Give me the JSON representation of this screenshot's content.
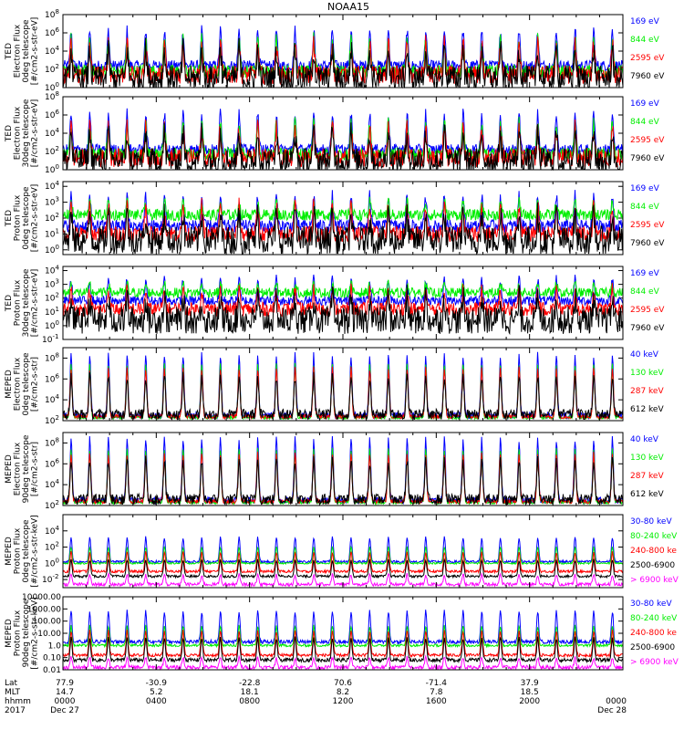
{
  "chart_data": {
    "type": "line",
    "title": "NOAA15",
    "panels": [
      {
        "ylabel_lines": [
          "TED",
          "Electron Flux",
          "0deg telescope",
          "[#/cm2-s-str-eV]"
        ],
        "log_ticks": [
          "10^0",
          "10^2",
          "10^4",
          "10^6",
          "10^8"
        ],
        "ylim_log": [
          0,
          8
        ],
        "series": [
          {
            "name": "7960 eV",
            "color": "#000000",
            "base": 1.0,
            "peak": 4.2,
            "noise": 1.4
          },
          {
            "name": "2595 eV",
            "color": "#ff0000",
            "base": 1.4,
            "peak": 4.8,
            "noise": 1.0
          },
          {
            "name": "844 eV",
            "color": "#00ee00",
            "base": 1.8,
            "peak": 5.4,
            "noise": 0.7
          },
          {
            "name": "169 eV",
            "color": "#0000ff",
            "base": 2.4,
            "peak": 6.3,
            "noise": 0.6
          }
        ]
      },
      {
        "ylabel_lines": [
          "TED",
          "Electron Flux",
          "30deg telescope",
          "[#/cm2-s-str-eV]"
        ],
        "log_ticks": [
          "10^0",
          "10^2",
          "10^4",
          "10^6",
          "10^8"
        ],
        "ylim_log": [
          0,
          8
        ],
        "series": [
          {
            "name": "7960 eV",
            "color": "#000000",
            "base": 1.0,
            "peak": 4.0,
            "noise": 1.4
          },
          {
            "name": "2595 eV",
            "color": "#ff0000",
            "base": 1.3,
            "peak": 4.6,
            "noise": 1.0
          },
          {
            "name": "844 eV",
            "color": "#00ee00",
            "base": 1.7,
            "peak": 5.2,
            "noise": 0.7
          },
          {
            "name": "169 eV",
            "color": "#0000ff",
            "base": 2.2,
            "peak": 6.2,
            "noise": 0.6
          }
        ]
      },
      {
        "ylabel_lines": [
          "TED",
          "Proton Flux",
          "0deg telescope",
          "[#/cm2-s-str-eV]"
        ],
        "log_ticks": [
          "10^0",
          "10^1",
          "10^2",
          "10^3",
          "10^4"
        ],
        "ylim_log": [
          -0.3,
          4.3
        ],
        "series": [
          {
            "name": "7960 eV",
            "color": "#000000",
            "base": 0.6,
            "peak": 2.2,
            "noise": 0.9
          },
          {
            "name": "2595 eV",
            "color": "#ff0000",
            "base": 1.0,
            "peak": 2.8,
            "noise": 0.5
          },
          {
            "name": "844 eV",
            "color": "#00ee00",
            "base": 2.2,
            "peak": 3.0,
            "noise": 0.35
          },
          {
            "name": "169 eV",
            "color": "#0000ff",
            "base": 1.5,
            "peak": 3.4,
            "noise": 0.4
          }
        ]
      },
      {
        "ylabel_lines": [
          "TED",
          "Proton Flux",
          "30deg telescope",
          "[#/cm2-s-str-eV]"
        ],
        "log_ticks": [
          "10^-1",
          "10^0",
          "10^1",
          "10^2",
          "10^3",
          "10^4"
        ],
        "ylim_log": [
          -1,
          4.3
        ],
        "series": [
          {
            "name": "7960 eV",
            "color": "#000000",
            "base": 0.4,
            "peak": 2.0,
            "noise": 1.0
          },
          {
            "name": "2595 eV",
            "color": "#ff0000",
            "base": 1.2,
            "peak": 2.6,
            "noise": 0.5
          },
          {
            "name": "844 eV",
            "color": "#00ee00",
            "base": 2.4,
            "peak": 3.0,
            "noise": 0.35
          },
          {
            "name": "169 eV",
            "color": "#0000ff",
            "base": 1.8,
            "peak": 3.4,
            "noise": 0.35
          }
        ]
      },
      {
        "ylabel_lines": [
          "MEPED",
          "Electron Flux",
          "0deg telescope",
          "[#/cm2-s-str]"
        ],
        "log_ticks": [
          "10^2",
          "10^4",
          "10^6",
          "10^8"
        ],
        "ylim_log": [
          2,
          9
        ],
        "series": [
          {
            "name": "612 keV",
            "color": "#000000",
            "base": 2.6,
            "peak": 6.2,
            "noise": 0.5
          },
          {
            "name": "287 keV",
            "color": "#ff0000",
            "base": 2.4,
            "peak": 7.0,
            "noise": 0.2
          },
          {
            "name": "130 keV",
            "color": "#00ee00",
            "base": 2.3,
            "peak": 7.4,
            "noise": 0.15
          },
          {
            "name": "40 keV",
            "color": "#0000ff",
            "base": 2.5,
            "peak": 8.3,
            "noise": 0.3
          }
        ]
      },
      {
        "ylabel_lines": [
          "MEPED",
          "Electron Flux",
          "90deg telescope",
          "[#/cm2-s-str]"
        ],
        "log_ticks": [
          "10^2",
          "10^4",
          "10^6",
          "10^8"
        ],
        "ylim_log": [
          2,
          9
        ],
        "series": [
          {
            "name": "612 keV",
            "color": "#000000",
            "base": 2.6,
            "peak": 6.3,
            "noise": 0.5
          },
          {
            "name": "287 keV",
            "color": "#ff0000",
            "base": 2.4,
            "peak": 7.0,
            "noise": 0.2
          },
          {
            "name": "130 keV",
            "color": "#00ee00",
            "base": 2.3,
            "peak": 7.4,
            "noise": 0.15
          },
          {
            "name": "40 keV",
            "color": "#0000ff",
            "base": 2.5,
            "peak": 8.4,
            "noise": 0.3
          }
        ]
      },
      {
        "ylabel_lines": [
          "MEPED",
          "Proton Flux",
          "0deg telescope",
          "[#/cm2-s-str-keV]"
        ],
        "log_ticks": [
          "10^-2",
          "10^0",
          "10^2",
          "10^4"
        ],
        "ylim_log": [
          -3,
          6
        ],
        "series": [
          {
            "name": "> 6900 keV",
            "color": "#ff00ff",
            "base": -2.6,
            "peak": -1.4,
            "noise": 0.2
          },
          {
            "name": "2500-6900",
            "color": "#000000",
            "base": -1.6,
            "peak": 0.4,
            "noise": 0.15
          },
          {
            "name": "240-800 ke",
            "color": "#ff0000",
            "base": -1.0,
            "peak": 1.4,
            "noise": 0.15
          },
          {
            "name": "80-240 keV",
            "color": "#00ee00",
            "base": 0.0,
            "peak": 2.0,
            "noise": 0.1
          },
          {
            "name": "30-80 keV",
            "color": "#0000ff",
            "base": 0.2,
            "peak": 3.2,
            "noise": 0.15
          }
        ]
      },
      {
        "ylabel_lines": [
          "MEPED",
          "Proton Flux",
          "90deg telescope",
          "[#/cm2-s-str-keV]"
        ],
        "log_ticks": [
          "0.01",
          "0.10",
          "1.0",
          "10.00",
          "100.00",
          "1000.00",
          "10000.00"
        ],
        "ylim_log": [
          -2,
          4
        ],
        "series": [
          {
            "name": "> 6900 keV",
            "color": "#ff00ff",
            "base": -1.8,
            "peak": -1.0,
            "noise": 0.15
          },
          {
            "name": "2500-6900",
            "color": "#000000",
            "base": -1.2,
            "peak": 0.6,
            "noise": 0.15
          },
          {
            "name": "240-800 ke",
            "color": "#ff0000",
            "base": -0.8,
            "peak": 1.2,
            "noise": 0.12
          },
          {
            "name": "80-240 keV",
            "color": "#00ee00",
            "base": 0.0,
            "peak": 1.6,
            "noise": 0.1
          },
          {
            "name": "30-80 keV",
            "color": "#0000ff",
            "base": 0.3,
            "peak": 2.8,
            "noise": 0.15
          }
        ]
      }
    ],
    "x_axis": {
      "row_labels": [
        "Lat",
        "MLT",
        "hhmm",
        "2017"
      ],
      "columns": [
        {
          "lat": "77.9",
          "mlt": "14.7",
          "hhmm": "0000",
          "date": "Dec 27"
        },
        {
          "lat": "-30.9",
          "mlt": "5.2",
          "hhmm": "0400",
          "date": ""
        },
        {
          "lat": "-22.8",
          "mlt": "18.1",
          "hhmm": "0800",
          "date": ""
        },
        {
          "lat": "70.6",
          "mlt": "8.2",
          "hhmm": "1200",
          "date": ""
        },
        {
          "lat": "-71.4",
          "mlt": "7.8",
          "hhmm": "1600",
          "date": ""
        },
        {
          "lat": "37.9",
          "mlt": "18.5",
          "hhmm": "2000",
          "date": ""
        },
        {
          "lat": "",
          "mlt": "",
          "hhmm": "0000",
          "date": "Dec 28"
        }
      ],
      "range_hours": [
        0,
        24
      ]
    }
  }
}
